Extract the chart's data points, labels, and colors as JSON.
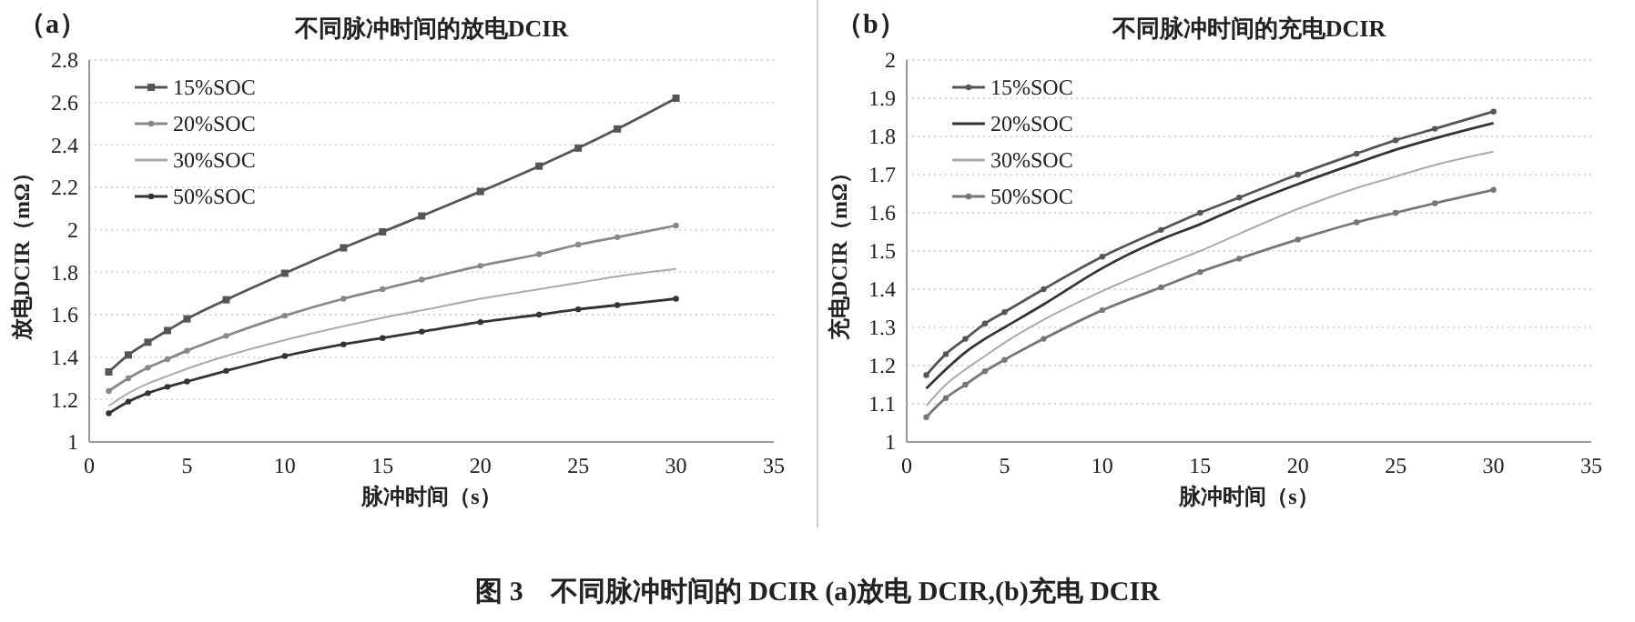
{
  "chart_data": [
    {
      "type": "line",
      "title": "不同脉冲时间的放电DCIR",
      "xlabel": "脉冲时间（s）",
      "ylabel": "放电DCIR（mΩ）",
      "annotations": [
        "（a）",
        "图 3　不同脉冲时间的 DCIR (a)放电 DCIR,(b)充电 DCIR"
      ],
      "x": [
        1,
        2,
        3,
        4,
        5,
        7,
        10,
        13,
        15,
        17,
        20,
        23,
        25,
        27,
        30
      ],
      "xlim": [
        0,
        35
      ],
      "xticks": [
        0,
        5,
        10,
        15,
        20,
        25,
        30,
        35
      ],
      "ylim": [
        1,
        2.8
      ],
      "yticks": [
        1,
        1.2,
        1.4,
        1.6,
        1.8,
        2,
        2.2,
        2.4,
        2.6,
        2.8
      ],
      "grid": "y",
      "legend": "top left",
      "series": [
        {
          "name": "15%SOC",
          "color": "#555555",
          "marker": "square",
          "values": [
            1.33,
            1.41,
            1.47,
            1.525,
            1.58,
            1.67,
            1.795,
            1.915,
            1.99,
            2.065,
            2.18,
            2.3,
            2.385,
            2.475,
            2.62
          ]
        },
        {
          "name": "20%SOC",
          "color": "#888888",
          "marker": "circle",
          "values": [
            1.24,
            1.3,
            1.35,
            1.39,
            1.43,
            1.5,
            1.595,
            1.675,
            1.72,
            1.765,
            1.83,
            1.885,
            1.93,
            1.965,
            2.02
          ]
        },
        {
          "name": "30%SOC",
          "color": "#aaaaaa",
          "marker": "none",
          "values": [
            1.17,
            1.23,
            1.275,
            1.31,
            1.345,
            1.405,
            1.48,
            1.545,
            1.585,
            1.62,
            1.675,
            1.72,
            1.75,
            1.78,
            1.815
          ]
        },
        {
          "name": "50%SOC",
          "color": "#333333",
          "marker": "circle",
          "values": [
            1.135,
            1.19,
            1.23,
            1.26,
            1.285,
            1.335,
            1.405,
            1.46,
            1.49,
            1.52,
            1.565,
            1.6,
            1.625,
            1.645,
            1.675
          ]
        }
      ]
    },
    {
      "type": "line",
      "title": "不同脉冲时间的充电DCIR",
      "xlabel": "脉冲时间（s）",
      "ylabel": "充电DCIR（mΩ）",
      "annotations": [
        "（b）"
      ],
      "x": [
        1,
        2,
        3,
        4,
        5,
        7,
        10,
        13,
        15,
        17,
        20,
        23,
        25,
        27,
        30
      ],
      "xlim": [
        0,
        35
      ],
      "xticks": [
        0,
        5,
        10,
        15,
        20,
        25,
        30,
        35
      ],
      "ylim": [
        1,
        2
      ],
      "yticks": [
        1,
        1.1,
        1.2,
        1.3,
        1.4,
        1.5,
        1.6,
        1.7,
        1.8,
        1.9,
        2
      ],
      "grid": "y",
      "legend": "top left",
      "series": [
        {
          "name": "15%SOC",
          "color": "#555555",
          "marker": "circle",
          "values": [
            1.175,
            1.23,
            1.27,
            1.31,
            1.34,
            1.4,
            1.485,
            1.555,
            1.6,
            1.64,
            1.7,
            1.755,
            1.79,
            1.82,
            1.865
          ]
        },
        {
          "name": "20%SOC",
          "color": "#333333",
          "marker": "none",
          "values": [
            1.14,
            1.19,
            1.235,
            1.27,
            1.3,
            1.36,
            1.455,
            1.53,
            1.57,
            1.615,
            1.675,
            1.73,
            1.765,
            1.795,
            1.835
          ]
        },
        {
          "name": "30%SOC",
          "color": "#aaaaaa",
          "marker": "none",
          "values": [
            1.095,
            1.15,
            1.19,
            1.225,
            1.26,
            1.32,
            1.395,
            1.46,
            1.5,
            1.545,
            1.61,
            1.665,
            1.695,
            1.725,
            1.76
          ]
        },
        {
          "name": "50%SOC",
          "color": "#777777",
          "marker": "circle",
          "values": [
            1.065,
            1.115,
            1.15,
            1.185,
            1.215,
            1.27,
            1.345,
            1.405,
            1.445,
            1.48,
            1.53,
            1.575,
            1.6,
            1.625,
            1.66
          ]
        }
      ]
    }
  ]
}
